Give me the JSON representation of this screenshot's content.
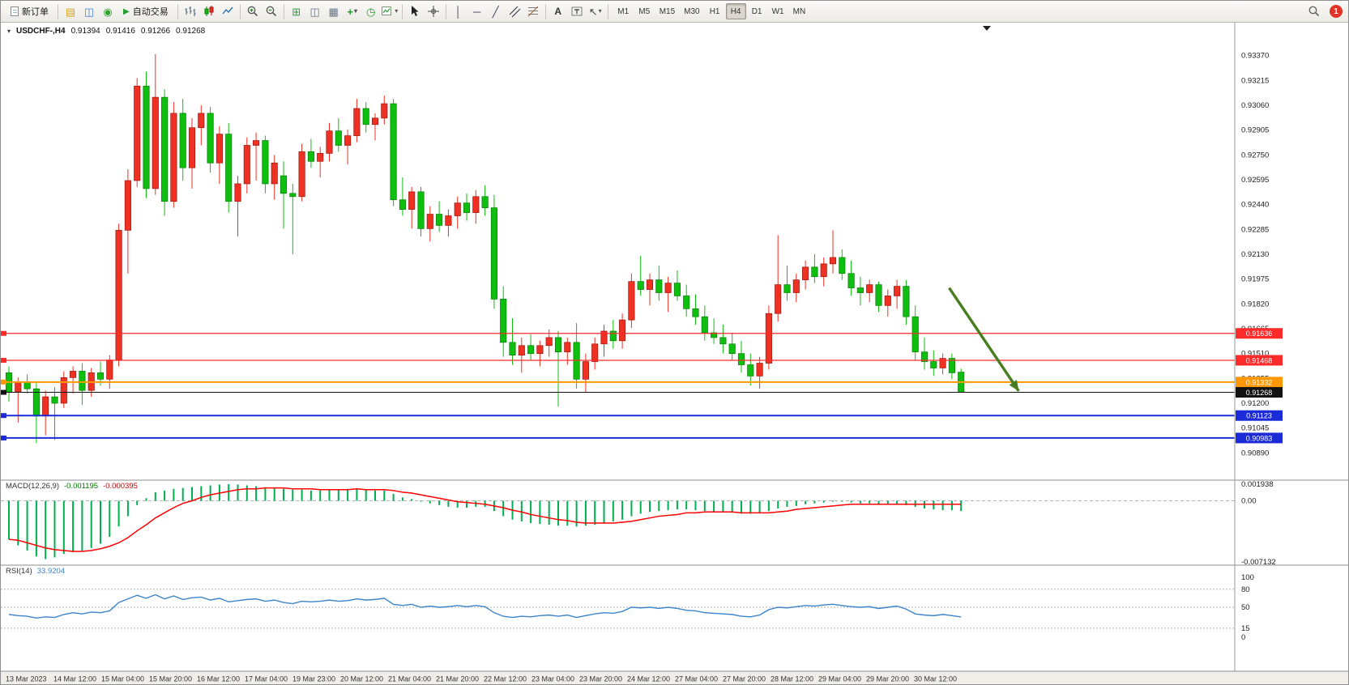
{
  "toolbar": {
    "new_order_label": "新订单",
    "auto_trading_label": "自动交易",
    "timeframes": [
      "M1",
      "M5",
      "M15",
      "M30",
      "H1",
      "H4",
      "D1",
      "W1",
      "MN"
    ],
    "active_timeframe": "H4",
    "notification_count": "1"
  },
  "chart_header": {
    "symbol_period": "USDCHF-,H4",
    "open": "0.91394",
    "high": "0.91416",
    "low": "0.91266",
    "close": "0.91268"
  },
  "indicators": {
    "macd_label": "MACD(12,26,9)",
    "macd_value": "-0.001195",
    "macd_signal_value": "-0.000395",
    "rsi_label": "RSI(14)",
    "rsi_value": "33.9204"
  },
  "chart_data": [
    {
      "type": "candlestick",
      "symbol": "USDCHF-",
      "timeframe": "H4",
      "current_ohlc": {
        "open": 0.91394,
        "high": 0.91416,
        "low": 0.91266,
        "close": 0.91268
      },
      "bull_color": "#ef3124",
      "bear_color": "#0fbf0f",
      "ylim": [
        0.9074,
        0.9351
      ],
      "price_axis_ticks": [
        "0.93370",
        "0.93215",
        "0.93060",
        "0.92905",
        "0.92750",
        "0.92595",
        "0.92440",
        "0.92285",
        "0.92130",
        "0.91975",
        "0.91820",
        "0.91665",
        "0.91510",
        "0.91355",
        "0.91200",
        "0.91045",
        "0.90890"
      ],
      "time_labels": [
        "13 Mar 2023",
        "14 Mar 12:00",
        "15 Mar 04:00",
        "15 Mar 20:00",
        "16 Mar 12:00",
        "17 Mar 04:00",
        "19 Mar 23:00",
        "20 Mar 12:00",
        "21 Mar 04:00",
        "21 Mar 20:00",
        "22 Mar 12:00",
        "23 Mar 04:00",
        "23 Mar 20:00",
        "24 Mar 12:00",
        "27 Mar 04:00",
        "27 Mar 20:00",
        "28 Mar 12:00",
        "29 Mar 04:00",
        "29 Mar 20:00",
        "30 Mar 12:00"
      ],
      "hlines": [
        {
          "price": 0.91636,
          "label": "0.91636",
          "color": "#ff2a2a",
          "w": 1.3
        },
        {
          "price": 0.91468,
          "label": "0.91468",
          "color": "#ff2a2a",
          "w": 1.3
        },
        {
          "price": 0.91332,
          "label": "0.91332",
          "color": "#ff9800",
          "w": 2
        },
        {
          "price": 0.91268,
          "label": "0.91268",
          "color": "#111111",
          "w": 1
        },
        {
          "price": 0.91123,
          "label": "0.91123",
          "color": "#1c2bd8",
          "w": 2
        },
        {
          "price": 0.90983,
          "label": "0.90983",
          "color": "#1c2bd8",
          "w": 2
        }
      ],
      "annotation_arrow": {
        "color": "#477d1e",
        "from": {
          "index": 102.7,
          "price": 0.9192
        },
        "to": {
          "index": 110.3,
          "price": 0.91276
        }
      },
      "candles": [
        [
          0.9139,
          0.9143,
          0.9121,
          0.9127
        ],
        [
          0.9127,
          0.9136,
          0.9108,
          0.9133
        ],
        [
          0.9133,
          0.9138,
          0.9126,
          0.9129
        ],
        [
          0.9129,
          0.9133,
          0.9095,
          0.9112
        ],
        [
          0.9112,
          0.9128,
          0.91,
          0.9124
        ],
        [
          0.9124,
          0.913,
          0.9097,
          0.912
        ],
        [
          0.912,
          0.914,
          0.9117,
          0.9136
        ],
        [
          0.9136,
          0.9143,
          0.9126,
          0.914
        ],
        [
          0.914,
          0.9145,
          0.9119,
          0.9128
        ],
        [
          0.9128,
          0.9142,
          0.9124,
          0.9139
        ],
        [
          0.9139,
          0.9146,
          0.9131,
          0.9135
        ],
        [
          0.9135,
          0.915,
          0.9129,
          0.9147
        ],
        [
          0.9147,
          0.9232,
          0.9143,
          0.9228
        ],
        [
          0.9228,
          0.9266,
          0.9201,
          0.9259
        ],
        [
          0.9259,
          0.9323,
          0.9255,
          0.9318
        ],
        [
          0.9318,
          0.9327,
          0.9248,
          0.9254
        ],
        [
          0.9254,
          0.9338,
          0.925,
          0.9311
        ],
        [
          0.9311,
          0.9316,
          0.9237,
          0.9246
        ],
        [
          0.9246,
          0.9308,
          0.9242,
          0.9301
        ],
        [
          0.9301,
          0.931,
          0.9259,
          0.9267
        ],
        [
          0.9267,
          0.9298,
          0.9254,
          0.9292
        ],
        [
          0.9292,
          0.9306,
          0.9281,
          0.9301
        ],
        [
          0.9301,
          0.9305,
          0.9264,
          0.927
        ],
        [
          0.927,
          0.9293,
          0.9257,
          0.9288
        ],
        [
          0.9288,
          0.9295,
          0.9239,
          0.9246
        ],
        [
          0.9246,
          0.9262,
          0.9224,
          0.9257
        ],
        [
          0.9257,
          0.9286,
          0.9251,
          0.9281
        ],
        [
          0.9281,
          0.9289,
          0.9259,
          0.9284
        ],
        [
          0.9284,
          0.9287,
          0.9251,
          0.9257
        ],
        [
          0.9257,
          0.9275,
          0.9247,
          0.927
        ],
        [
          0.9262,
          0.9271,
          0.9229,
          0.9251
        ],
        [
          0.9251,
          0.9257,
          0.9213,
          0.9249
        ],
        [
          0.9249,
          0.9282,
          0.9246,
          0.9277
        ],
        [
          0.9277,
          0.9285,
          0.9267,
          0.9271
        ],
        [
          0.9271,
          0.928,
          0.9261,
          0.9276
        ],
        [
          0.9276,
          0.9295,
          0.9271,
          0.929
        ],
        [
          0.929,
          0.9298,
          0.9277,
          0.9281
        ],
        [
          0.9281,
          0.9291,
          0.9269,
          0.9287
        ],
        [
          0.9287,
          0.931,
          0.9283,
          0.9304
        ],
        [
          0.9304,
          0.9308,
          0.9289,
          0.9294
        ],
        [
          0.9294,
          0.9301,
          0.9284,
          0.9298
        ],
        [
          0.9298,
          0.9312,
          0.9294,
          0.9307
        ],
        [
          0.9307,
          0.931,
          0.9243,
          0.9247
        ],
        [
          0.9247,
          0.9261,
          0.9237,
          0.9241
        ],
        [
          0.9241,
          0.9255,
          0.9229,
          0.9252
        ],
        [
          0.9252,
          0.9255,
          0.9224,
          0.9229
        ],
        [
          0.9229,
          0.9243,
          0.9221,
          0.9238
        ],
        [
          0.9238,
          0.9246,
          0.9227,
          0.9231
        ],
        [
          0.9231,
          0.9241,
          0.9224,
          0.9237
        ],
        [
          0.9237,
          0.9249,
          0.9229,
          0.9245
        ],
        [
          0.9245,
          0.9251,
          0.9234,
          0.9239
        ],
        [
          0.9239,
          0.9253,
          0.9232,
          0.9249
        ],
        [
          0.9249,
          0.9256,
          0.9237,
          0.9242
        ],
        [
          0.9242,
          0.925,
          0.9179,
          0.9185
        ],
        [
          0.9185,
          0.9193,
          0.9149,
          0.9158
        ],
        [
          0.9158,
          0.9173,
          0.9144,
          0.915
        ],
        [
          0.915,
          0.9161,
          0.9139,
          0.9156
        ],
        [
          0.9156,
          0.9163,
          0.9147,
          0.9151
        ],
        [
          0.9151,
          0.9159,
          0.9143,
          0.9156
        ],
        [
          0.9156,
          0.9166,
          0.9149,
          0.9161
        ],
        [
          0.9161,
          0.9165,
          0.9118,
          0.9152
        ],
        [
          0.9152,
          0.9161,
          0.9144,
          0.9158
        ],
        [
          0.9158,
          0.917,
          0.9129,
          0.9135
        ],
        [
          0.9135,
          0.9151,
          0.9127,
          0.9146
        ],
        [
          0.9146,
          0.9161,
          0.9141,
          0.9157
        ],
        [
          0.9157,
          0.9169,
          0.9149,
          0.9165
        ],
        [
          0.9165,
          0.9172,
          0.9154,
          0.9159
        ],
        [
          0.9159,
          0.9176,
          0.9154,
          0.9172
        ],
        [
          0.9172,
          0.9201,
          0.9167,
          0.9196
        ],
        [
          0.9196,
          0.9212,
          0.9187,
          0.9191
        ],
        [
          0.9191,
          0.9201,
          0.9181,
          0.9197
        ],
        [
          0.9197,
          0.9206,
          0.9184,
          0.9189
        ],
        [
          0.9189,
          0.9199,
          0.9177,
          0.9195
        ],
        [
          0.9195,
          0.9203,
          0.9184,
          0.9187
        ],
        [
          0.9187,
          0.9194,
          0.9174,
          0.9179
        ],
        [
          0.9179,
          0.9188,
          0.9169,
          0.9174
        ],
        [
          0.9174,
          0.9181,
          0.9159,
          0.9164
        ],
        [
          0.9164,
          0.9173,
          0.9157,
          0.9161
        ],
        [
          0.9161,
          0.9169,
          0.9151,
          0.9157
        ],
        [
          0.9157,
          0.9164,
          0.9147,
          0.9151
        ],
        [
          0.9151,
          0.9159,
          0.9139,
          0.9144
        ],
        [
          0.9144,
          0.9151,
          0.9131,
          0.9137
        ],
        [
          0.9137,
          0.9149,
          0.9129,
          0.9145
        ],
        [
          0.9145,
          0.9181,
          0.9141,
          0.9176
        ],
        [
          0.9176,
          0.9225,
          0.9171,
          0.9194
        ],
        [
          0.9194,
          0.9206,
          0.9184,
          0.9189
        ],
        [
          0.9189,
          0.9201,
          0.9183,
          0.9197
        ],
        [
          0.9197,
          0.9209,
          0.9191,
          0.9205
        ],
        [
          0.9205,
          0.9213,
          0.9195,
          0.9199
        ],
        [
          0.9199,
          0.9211,
          0.9193,
          0.9207
        ],
        [
          0.9207,
          0.9228,
          0.9201,
          0.9211
        ],
        [
          0.9211,
          0.9216,
          0.9197,
          0.9201
        ],
        [
          0.9201,
          0.9209,
          0.9187,
          0.9192
        ],
        [
          0.9192,
          0.9199,
          0.9181,
          0.9189
        ],
        [
          0.9189,
          0.9197,
          0.9183,
          0.9194
        ],
        [
          0.9194,
          0.9196,
          0.9177,
          0.9181
        ],
        [
          0.9181,
          0.9191,
          0.9174,
          0.9187
        ],
        [
          0.9187,
          0.9197,
          0.9179,
          0.9193
        ],
        [
          0.9193,
          0.9197,
          0.9169,
          0.9174
        ],
        [
          0.9174,
          0.9181,
          0.9147,
          0.9152
        ],
        [
          0.9152,
          0.9161,
          0.9141,
          0.9146
        ],
        [
          0.9146,
          0.9153,
          0.9137,
          0.9142
        ],
        [
          0.9142,
          0.9151,
          0.9138,
          0.9148
        ],
        [
          0.9148,
          0.9151,
          0.9135,
          0.9139
        ],
        [
          0.91394,
          0.91416,
          0.91266,
          0.91268
        ]
      ]
    },
    {
      "type": "bar",
      "name": "MACD",
      "label": "MACD(12,26,9)",
      "main_value": -0.001195,
      "signal_value": -0.000395,
      "ylim": [
        -0.007132,
        0.001938
      ],
      "axis_ticks": [
        "0.001938",
        "0.00",
        "-0.007132"
      ],
      "histogram_color": "#00b050",
      "signal_color": "#ff0000",
      "histogram": [
        -0.0045,
        -0.0052,
        -0.0058,
        -0.0065,
        -0.0068,
        -0.0066,
        -0.0062,
        -0.006,
        -0.0058,
        -0.0055,
        -0.005,
        -0.0042,
        -0.003,
        -0.0018,
        -0.0005,
        0.0003,
        0.001,
        0.0012,
        0.0014,
        0.0015,
        0.0016,
        0.0017,
        0.0018,
        0.0019,
        0.00194,
        0.0019,
        0.0018,
        0.0017,
        0.0016,
        0.0015,
        0.0014,
        0.0013,
        0.0013,
        0.0012,
        0.0012,
        0.0013,
        0.0013,
        0.0014,
        0.0014,
        0.0013,
        0.0012,
        0.0012,
        0.0008,
        0.0004,
        0.0002,
        -0.0001,
        -0.0003,
        -0.0005,
        -0.0007,
        -0.0008,
        -0.0008,
        -0.0007,
        -0.0007,
        -0.0012,
        -0.0018,
        -0.0022,
        -0.0024,
        -0.0026,
        -0.0027,
        -0.0028,
        -0.0029,
        -0.0029,
        -0.003,
        -0.0029,
        -0.0028,
        -0.0026,
        -0.0024,
        -0.0022,
        -0.0018,
        -0.0015,
        -0.0013,
        -0.0012,
        -0.0011,
        -0.001,
        -0.001,
        -0.0011,
        -0.0012,
        -0.0013,
        -0.0013,
        -0.0014,
        -0.0015,
        -0.0015,
        -0.0014,
        -0.0012,
        -0.0009,
        -0.0007,
        -0.0006,
        -0.0004,
        -0.0003,
        -0.0002,
        -0.0001,
        -0.0001,
        -0.0002,
        -0.0003,
        -0.0003,
        -0.0004,
        -0.0004,
        -0.0004,
        -0.0005,
        -0.0007,
        -0.0009,
        -0.001,
        -0.0011,
        -0.0011,
        -0.001195
      ],
      "signal": [
        -0.0045,
        -0.0046,
        -0.0049,
        -0.0052,
        -0.0055,
        -0.0057,
        -0.0058,
        -0.0059,
        -0.0059,
        -0.0058,
        -0.0056,
        -0.0053,
        -0.0049,
        -0.0043,
        -0.0035,
        -0.0028,
        -0.002,
        -0.0014,
        -0.0008,
        -0.0003,
        0.0,
        0.0004,
        0.0007,
        0.0009,
        0.0011,
        0.0013,
        0.0014,
        0.0014,
        0.0015,
        0.0015,
        0.0015,
        0.0014,
        0.0014,
        0.0014,
        0.0013,
        0.0013,
        0.0013,
        0.0013,
        0.0014,
        0.0013,
        0.0013,
        0.0013,
        0.0012,
        0.001,
        0.0009,
        0.0007,
        0.0005,
        0.0003,
        0.0001,
        -0.0001,
        -0.0002,
        -0.0003,
        -0.0004,
        -0.0006,
        -0.0008,
        -0.0011,
        -0.0013,
        -0.0016,
        -0.0018,
        -0.002,
        -0.0022,
        -0.0023,
        -0.0025,
        -0.0026,
        -0.0026,
        -0.0026,
        -0.0026,
        -0.0025,
        -0.0024,
        -0.0022,
        -0.002,
        -0.0018,
        -0.0017,
        -0.0016,
        -0.0014,
        -0.0014,
        -0.0013,
        -0.0013,
        -0.0013,
        -0.0013,
        -0.0014,
        -0.0014,
        -0.0014,
        -0.0014,
        -0.0013,
        -0.0012,
        -0.001,
        -0.0009,
        -0.0008,
        -0.0007,
        -0.0006,
        -0.0005,
        -0.0004,
        -0.0004,
        -0.0004,
        -0.0004,
        -0.0004,
        -0.0004,
        -0.0004,
        -0.0004,
        -0.0004,
        -0.0004,
        -0.0004,
        -0.0004,
        -0.000395
      ]
    },
    {
      "type": "line",
      "name": "RSI",
      "label": "RSI(14)",
      "current_value": 33.9204,
      "ylim": [
        0,
        100
      ],
      "levels": [
        80,
        50,
        15
      ],
      "axis_ticks": [
        "100",
        "80",
        "50",
        "15",
        "0"
      ],
      "line_color": "#3d85c8",
      "values": [
        38,
        36,
        35,
        32,
        34,
        33,
        38,
        41,
        39,
        42,
        41,
        44,
        58,
        64,
        70,
        65,
        71,
        64,
        69,
        63,
        66,
        67,
        62,
        65,
        59,
        61,
        63,
        64,
        60,
        62,
        58,
        56,
        60,
        59,
        60,
        62,
        60,
        61,
        64,
        62,
        63,
        65,
        55,
        53,
        55,
        50,
        52,
        50,
        51,
        53,
        51,
        53,
        51,
        41,
        35,
        33,
        35,
        34,
        36,
        37,
        35,
        37,
        33,
        36,
        39,
        41,
        40,
        43,
        50,
        49,
        50,
        48,
        50,
        48,
        45,
        44,
        41,
        40,
        39,
        38,
        35,
        34,
        37,
        46,
        50,
        49,
        51,
        53,
        52,
        54,
        55,
        53,
        51,
        50,
        51,
        48,
        50,
        52,
        47,
        39,
        37,
        36,
        38,
        36,
        33.92
      ]
    }
  ]
}
